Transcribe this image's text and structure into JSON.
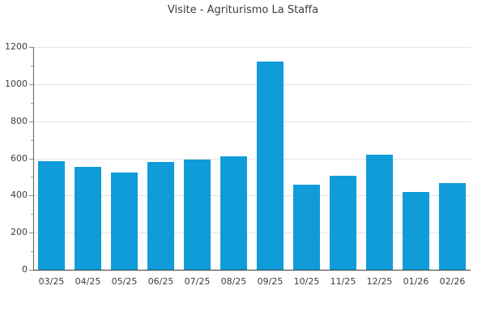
{
  "chart_data": {
    "type": "bar",
    "title": "Visite - Agriturismo La Staffa",
    "categories": [
      "03/25",
      "04/25",
      "05/25",
      "06/25",
      "07/25",
      "08/25",
      "09/25",
      "10/25",
      "11/25",
      "12/25",
      "01/26",
      "02/26"
    ],
    "values": [
      585,
      555,
      525,
      580,
      595,
      610,
      1120,
      460,
      505,
      620,
      420,
      465
    ],
    "xlabel": "",
    "ylabel": "",
    "ylim": [
      0,
      1200
    ],
    "yticks": [
      0,
      200,
      400,
      600,
      800,
      1000,
      1200
    ],
    "yminorticks": [
      100,
      300,
      500,
      700,
      900,
      1100
    ],
    "grid": true,
    "legend_position": "none",
    "colors": {
      "bar": "#0f9cd8",
      "background": "#ffffff",
      "gridline": "#e3e3e3",
      "y_axis": "#666666",
      "x_axis": "#3c3c3c",
      "tick": "#8a8a8a",
      "text": "#3d3d3d"
    }
  }
}
